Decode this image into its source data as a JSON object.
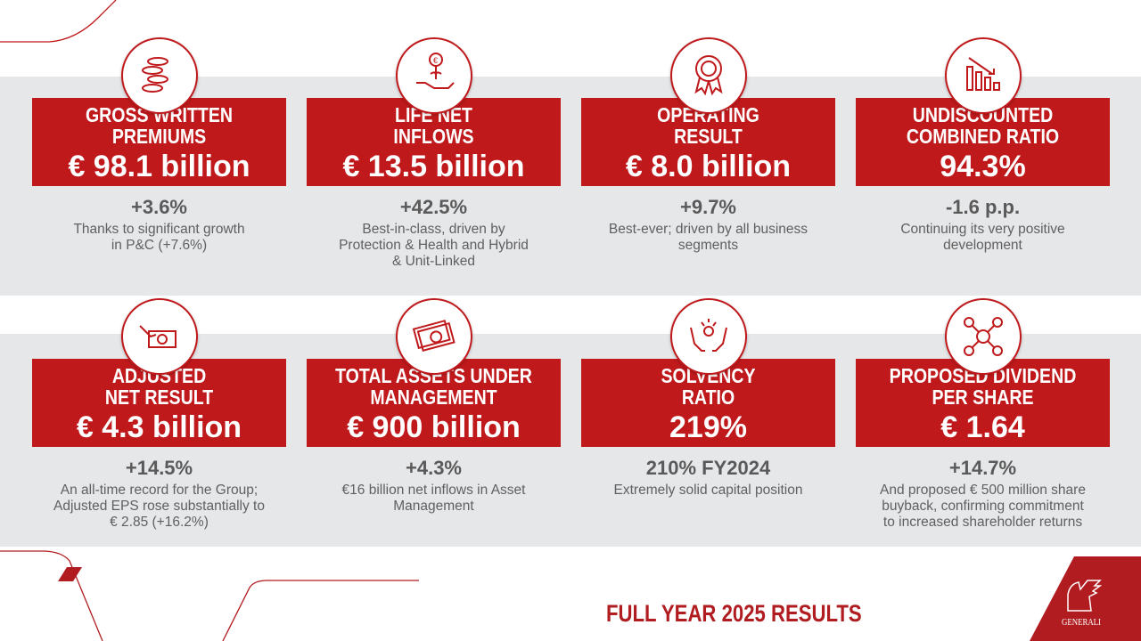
{
  "colors": {
    "accent": "#c0191c",
    "band": "#e6e7e9",
    "text": "#5a5a5a"
  },
  "cards": [
    {
      "icon": "coins-icon",
      "title_1": "GROSS WRITTEN",
      "title_2": "PREMIUMS",
      "value": "€ 98.1 billion",
      "change": "+3.6%",
      "desc": [
        "Thanks to significant growth",
        "in P&C (+7.6%)"
      ]
    },
    {
      "icon": "hand-euro-plant-icon",
      "title_1": "LIFE NET",
      "title_2": "INFLOWS",
      "value": "€ 13.5 billion",
      "change": "+42.5%",
      "desc": [
        "Best-in-class, driven by",
        "Protection & Health and Hybrid",
        "& Unit-Linked"
      ]
    },
    {
      "icon": "euro-award-icon",
      "title_1": "OPERATING",
      "title_2": "RESULT",
      "value": "€ 8.0 billion",
      "change": "+9.7%",
      "desc": [
        "Best-ever; driven by all business",
        "segments"
      ]
    },
    {
      "icon": "declining-bar-chart-icon",
      "title_1": "UNDISCOUNTED",
      "title_2": "COMBINED RATIO",
      "value": "94.3%",
      "change": "-1.6 p.p.",
      "desc": [
        "Continuing its very positive",
        "development"
      ]
    },
    {
      "icon": "hand-banknote-icon",
      "title_1": "ADJUSTED",
      "title_2": "NET RESULT",
      "value": "€ 4.3 billion",
      "change": "+14.5%",
      "desc": [
        "An all-time record for the Group;",
        "Adjusted EPS rose substantially to",
        "€ 2.85 (+16.2%)"
      ]
    },
    {
      "icon": "banknotes-icon",
      "title_1": "TOTAL ASSETS UNDER",
      "title_2": "MANAGEMENT",
      "value": "€ 900 billion",
      "change": "+4.3%",
      "desc": [
        "€16 billion net inflows in Asset",
        "Management"
      ]
    },
    {
      "icon": "hands-euro-icon",
      "title_1": "SOLVENCY",
      "title_2": "RATIO",
      "value": "219%",
      "change": "210% FY2024",
      "desc": [
        "Extremely solid capital position"
      ]
    },
    {
      "icon": "euro-network-icon",
      "title_1": "PROPOSED DIVIDEND",
      "title_2": "PER SHARE",
      "value": "€ 1.64",
      "change": "+14.7%",
      "desc": [
        "And proposed € 500 million share",
        "buyback, confirming commitment",
        "to increased shareholder returns"
      ]
    }
  ],
  "footer": {
    "title": "FULL YEAR 2025 RESULTS",
    "logo_text": "GENERALI"
  }
}
